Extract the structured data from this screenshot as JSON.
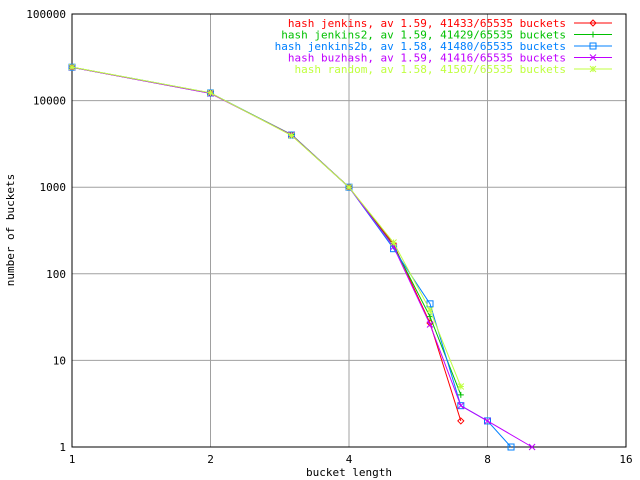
{
  "chart_data": {
    "type": "line",
    "xlabel": "bucket length",
    "ylabel": "number of buckets",
    "x_scale": "log2",
    "y_scale": "log10",
    "xlim": [
      1,
      16
    ],
    "ylim": [
      1,
      100000
    ],
    "x_ticks": [
      "1",
      "2",
      "4",
      "8",
      "16"
    ],
    "y_ticks": [
      "1",
      "10",
      "100",
      "1000",
      "10000",
      "100000"
    ],
    "grid": true,
    "legend_position": "top-right",
    "series": [
      {
        "name": "hash jenkins, av 1.59, 41433/65535 buckets",
        "color": "#ff0000",
        "marker": "diamond",
        "x": [
          1,
          2,
          3,
          4,
          5,
          6,
          7
        ],
        "y": [
          24243,
          12200,
          4000,
          1000,
          220,
          27,
          2
        ]
      },
      {
        "name": "hash jenkins2, av 1.59, 41429/65535 buckets",
        "color": "#00c000",
        "marker": "plus",
        "x": [
          1,
          2,
          3,
          4,
          5,
          6,
          7
        ],
        "y": [
          24250,
          12150,
          4050,
          1000,
          210,
          32,
          4
        ]
      },
      {
        "name": "hash jenkins2b, av 1.58, 41480/65535 buckets",
        "color": "#0080ff",
        "marker": "square",
        "x": [
          1,
          2,
          3,
          4,
          5,
          6,
          7,
          8,
          9
        ],
        "y": [
          24300,
          12250,
          4000,
          1000,
          195,
          45,
          3,
          2,
          1
        ]
      },
      {
        "name": "hash buzhash, av 1.59, 41416/65535 buckets",
        "color": "#c000ff",
        "marker": "cross",
        "x": [
          1,
          2,
          3,
          4,
          5,
          6,
          7,
          8,
          10
        ],
        "y": [
          24200,
          12100,
          4020,
          1000,
          205,
          26,
          3,
          2,
          1
        ]
      },
      {
        "name": "hash random, av 1.58, 41507/65535 buckets",
        "color": "#c0ff40",
        "marker": "star",
        "x": [
          1,
          2,
          3,
          4,
          5,
          6,
          7
        ],
        "y": [
          24350,
          12300,
          3950,
          1000,
          230,
          38,
          5
        ]
      }
    ]
  }
}
